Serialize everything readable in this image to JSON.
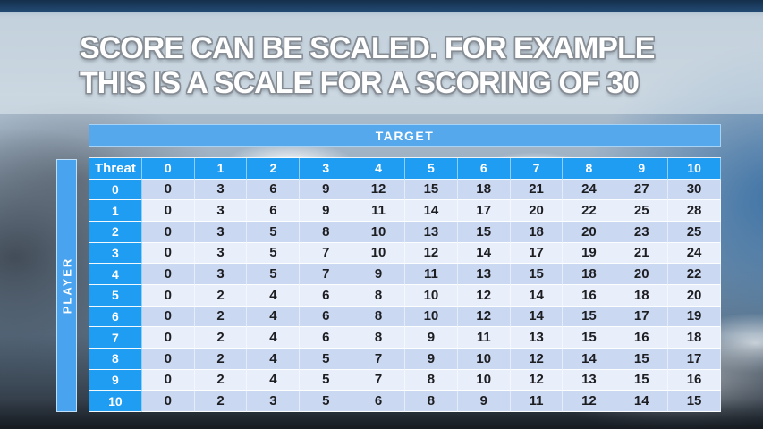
{
  "title": {
    "line1": "SCORE CAN BE SCALED. FOR EXAMPLE",
    "line2": "THIS IS A SCALE FOR A SCORING OF 30"
  },
  "matrix": {
    "target_label": "TARGET",
    "player_label": "PLAYER",
    "corner_label": "Threat",
    "target_headers": [
      "0",
      "1",
      "2",
      "3",
      "4",
      "5",
      "6",
      "7",
      "8",
      "9",
      "10"
    ],
    "rows": [
      {
        "threat": "0",
        "values": [
          0,
          3,
          6,
          9,
          12,
          15,
          18,
          21,
          24,
          27,
          30
        ]
      },
      {
        "threat": "1",
        "values": [
          0,
          3,
          6,
          9,
          11,
          14,
          17,
          20,
          22,
          25,
          28
        ]
      },
      {
        "threat": "2",
        "values": [
          0,
          3,
          5,
          8,
          10,
          13,
          15,
          18,
          20,
          23,
          25
        ]
      },
      {
        "threat": "3",
        "values": [
          0,
          3,
          5,
          7,
          10,
          12,
          14,
          17,
          19,
          21,
          24
        ]
      },
      {
        "threat": "4",
        "values": [
          0,
          3,
          5,
          7,
          9,
          11,
          13,
          15,
          18,
          20,
          22
        ]
      },
      {
        "threat": "5",
        "values": [
          0,
          2,
          4,
          6,
          8,
          10,
          12,
          14,
          16,
          18,
          20
        ]
      },
      {
        "threat": "6",
        "values": [
          0,
          2,
          4,
          6,
          8,
          10,
          12,
          14,
          15,
          17,
          19
        ]
      },
      {
        "threat": "7",
        "values": [
          0,
          2,
          4,
          6,
          8,
          9,
          11,
          13,
          15,
          16,
          18
        ]
      },
      {
        "threat": "8",
        "values": [
          0,
          2,
          4,
          5,
          7,
          9,
          10,
          12,
          14,
          15,
          17
        ]
      },
      {
        "threat": "9",
        "values": [
          0,
          2,
          4,
          5,
          7,
          8,
          10,
          12,
          13,
          15,
          16
        ]
      },
      {
        "threat": "10",
        "values": [
          0,
          2,
          3,
          5,
          6,
          8,
          9,
          11,
          12,
          14,
          15
        ]
      }
    ]
  },
  "colors": {
    "header_blue": "#1f9df3",
    "target_bar_blue": "#55a8ec",
    "player_bar_blue": "#4aa3ef",
    "row_even": "#cbd8f2",
    "row_odd": "#e9eefb",
    "cell_text": "#1d1e21",
    "title_text": "#ffffff"
  }
}
